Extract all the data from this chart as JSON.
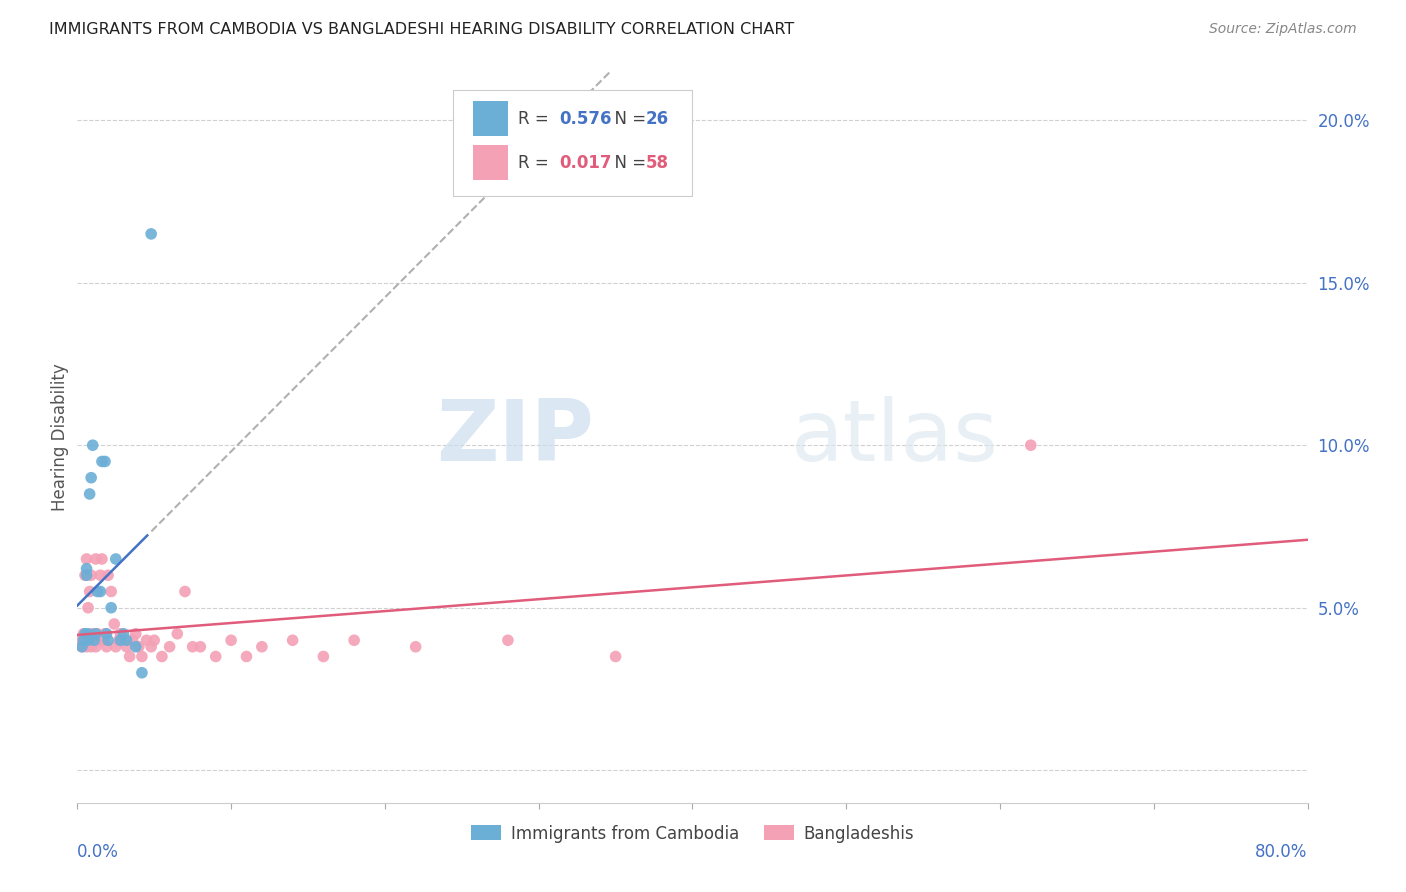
{
  "title": "IMMIGRANTS FROM CAMBODIA VS BANGLADESHI HEARING DISABILITY CORRELATION CHART",
  "source": "Source: ZipAtlas.com",
  "ylabel": "Hearing Disability",
  "yticks": [
    0.0,
    0.05,
    0.1,
    0.15,
    0.2
  ],
  "ytick_labels": [
    "",
    "5.0%",
    "10.0%",
    "15.0%",
    "20.0%"
  ],
  "xlim": [
    0.0,
    0.8
  ],
  "ylim": [
    -0.01,
    0.215
  ],
  "r_cambodia": 0.576,
  "n_cambodia": 26,
  "r_bangladeshi": 0.017,
  "n_bangladeshi": 58,
  "legend_label_cambodia": "Immigrants from Cambodia",
  "legend_label_bangladeshi": "Bangladeshis",
  "color_cambodia": "#6baed6",
  "color_bangladeshi": "#f4a0b5",
  "line_color_cambodia": "#4472c4",
  "line_color_bangladeshi": "#e05c7a",
  "watermark_zip": "ZIP",
  "watermark_atlas": "atlas",
  "background_color": "#ffffff",
  "cambodia_x": [
    0.003,
    0.004,
    0.005,
    0.006,
    0.006,
    0.007,
    0.007,
    0.008,
    0.009,
    0.01,
    0.011,
    0.012,
    0.013,
    0.015,
    0.016,
    0.018,
    0.019,
    0.02,
    0.022,
    0.025,
    0.028,
    0.03,
    0.032,
    0.038,
    0.042,
    0.048
  ],
  "cambodia_y": [
    0.038,
    0.04,
    0.042,
    0.06,
    0.062,
    0.04,
    0.042,
    0.085,
    0.09,
    0.1,
    0.04,
    0.042,
    0.055,
    0.055,
    0.095,
    0.095,
    0.042,
    0.04,
    0.05,
    0.065,
    0.04,
    0.042,
    0.04,
    0.038,
    0.03,
    0.165
  ],
  "bangladeshi_x": [
    0.002,
    0.003,
    0.004,
    0.005,
    0.005,
    0.006,
    0.006,
    0.007,
    0.007,
    0.008,
    0.008,
    0.009,
    0.009,
    0.01,
    0.01,
    0.011,
    0.012,
    0.012,
    0.013,
    0.014,
    0.015,
    0.016,
    0.017,
    0.018,
    0.019,
    0.02,
    0.022,
    0.024,
    0.025,
    0.027,
    0.028,
    0.03,
    0.032,
    0.034,
    0.036,
    0.038,
    0.04,
    0.042,
    0.045,
    0.048,
    0.05,
    0.055,
    0.06,
    0.065,
    0.07,
    0.075,
    0.08,
    0.09,
    0.1,
    0.11,
    0.12,
    0.14,
    0.16,
    0.18,
    0.22,
    0.28,
    0.35,
    0.62
  ],
  "bangladeshi_y": [
    0.04,
    0.038,
    0.042,
    0.04,
    0.06,
    0.065,
    0.038,
    0.04,
    0.05,
    0.055,
    0.04,
    0.038,
    0.06,
    0.04,
    0.042,
    0.04,
    0.038,
    0.065,
    0.042,
    0.04,
    0.06,
    0.065,
    0.04,
    0.042,
    0.038,
    0.06,
    0.055,
    0.045,
    0.038,
    0.04,
    0.042,
    0.04,
    0.038,
    0.035,
    0.04,
    0.042,
    0.038,
    0.035,
    0.04,
    0.038,
    0.04,
    0.035,
    0.038,
    0.042,
    0.055,
    0.038,
    0.038,
    0.035,
    0.04,
    0.035,
    0.038,
    0.04,
    0.035,
    0.04,
    0.038,
    0.04,
    0.035,
    0.1
  ]
}
